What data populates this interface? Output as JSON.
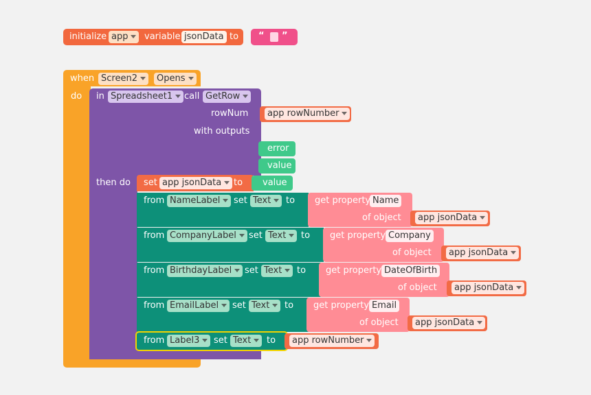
{
  "init": {
    "initialize": "initialize",
    "scope": "app",
    "variable": "variable",
    "name": "jsonData",
    "to": "to",
    "open_quote": "“",
    "close_quote": "”"
  },
  "event": {
    "when": "when",
    "component": "Screen2",
    "event_name": "Opens",
    "do": "do"
  },
  "getrow": {
    "in": "in",
    "component": "Spreadsheet1",
    "call": "call",
    "method": "GetRow",
    "rownum_label": "rowNum",
    "rownum_value": "app rowNumber",
    "with_outputs": "with outputs",
    "out_error": "error",
    "out_value": "value",
    "then_do": "then do"
  },
  "setjson": {
    "set": "set",
    "var": "app jsonData",
    "to": "to",
    "value": "value"
  },
  "rows": [
    {
      "from": "from",
      "component": "NameLabel",
      "set": "set",
      "prop": "Text",
      "to": "to",
      "get_property": "get property",
      "field": "Name",
      "of_object": "of object",
      "obj": "app jsonData"
    },
    {
      "from": "from",
      "component": "CompanyLabel",
      "set": "set",
      "prop": "Text",
      "to": "to",
      "get_property": "get property",
      "field": "Company",
      "of_object": "of object",
      "obj": "app jsonData"
    },
    {
      "from": "from",
      "component": "BirthdayLabel",
      "set": "set",
      "prop": "Text",
      "to": "to",
      "get_property": "get property",
      "field": "DateOfBirth",
      "of_object": "of object",
      "obj": "app jsonData"
    },
    {
      "from": "from",
      "component": "EmailLabel",
      "set": "set",
      "prop": "Text",
      "to": "to",
      "get_property": "get property",
      "field": "Email",
      "of_object": "of object",
      "obj": "app jsonData"
    }
  ],
  "last": {
    "from": "from",
    "component": "Label3",
    "set": "set",
    "prop": "Text",
    "to": "to",
    "value": "app rowNumber"
  }
}
